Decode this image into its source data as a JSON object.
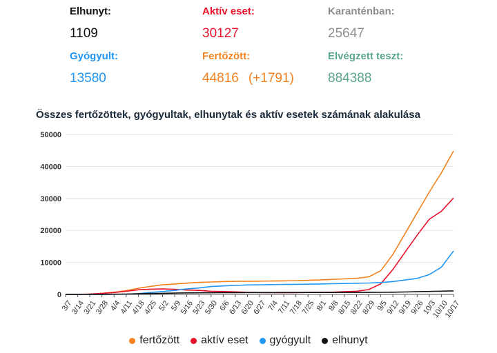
{
  "stats": {
    "elhunyt": {
      "label": "Elhunyt:",
      "value": "1109",
      "label_color": "#111111",
      "value_color": "#111111"
    },
    "aktiv": {
      "label": "Aktív eset:",
      "value": "30127",
      "label_color": "#e8132a",
      "value_color": "#e8132a"
    },
    "karantenban": {
      "label": "Karanténban:",
      "value": "25647",
      "label_color": "#8d8d8d",
      "value_color": "#8d8d8d"
    },
    "gyogyult": {
      "label": "Gyógyult:",
      "value": "13580",
      "label_color": "#2196f3",
      "value_color": "#2196f3"
    },
    "fertozott": {
      "label": "Fertőzött:",
      "value": "44816",
      "delta": "(+1791)",
      "label_color": "#f28220",
      "value_color": "#f28220"
    },
    "teszt": {
      "label": "Elvégzett teszt:",
      "value": "884388",
      "label_color": "#5aa889",
      "value_color": "#5aa889"
    }
  },
  "chart_data": {
    "type": "line",
    "title": "Összes fertőzöttek, gyógyultak, elhunytak és aktív esetek számának alakulása",
    "xlabel": "",
    "ylabel": "",
    "ylim": [
      0,
      50000
    ],
    "yticks": [
      0,
      10000,
      20000,
      30000,
      40000,
      50000
    ],
    "grid": true,
    "legend_position": "bottom",
    "x_ticks": [
      "3/7",
      "3/14",
      "3/21",
      "3/28",
      "4/4",
      "4/11",
      "4/18",
      "4/25",
      "5/2",
      "5/9",
      "5/16",
      "5/23",
      "5/30",
      "6/6",
      "6/13",
      "6/20",
      "6/27",
      "7/4",
      "7/11",
      "7/18",
      "7/25",
      "8/1",
      "8/8",
      "8/15",
      "8/22",
      "8/29",
      "9/5",
      "9/12",
      "9/19",
      "9/26",
      "10/3",
      "10/10",
      "10/17"
    ],
    "x": [
      "3/7",
      "3/14",
      "3/21",
      "3/28",
      "4/4",
      "4/11",
      "4/18",
      "4/25",
      "5/2",
      "5/9",
      "5/16",
      "5/23",
      "5/30",
      "6/6",
      "6/13",
      "6/20",
      "6/27",
      "7/4",
      "7/11",
      "7/18",
      "7/25",
      "8/1",
      "8/8",
      "8/15",
      "8/22",
      "8/29",
      "9/5",
      "9/12",
      "9/19",
      "9/26",
      "10/3",
      "10/10",
      "10/17"
    ],
    "series": [
      {
        "name": "fertőzött",
        "color": "#f28220",
        "values": [
          7,
          32,
          103,
          343,
          678,
          1190,
          1916,
          2500,
          2998,
          3263,
          3509,
          3756,
          3876,
          4014,
          4077,
          4114,
          4145,
          4183,
          4234,
          4300,
          4400,
          4500,
          4700,
          4850,
          5000,
          5500,
          7400,
          12500,
          19000,
          25500,
          32000,
          38000,
          44816
        ]
      },
      {
        "name": "aktív eset",
        "color": "#e8132a",
        "values": [
          7,
          31,
          95,
          310,
          590,
          1000,
          1440,
          1630,
          1700,
          1600,
          1350,
          1250,
          1000,
          900,
          800,
          650,
          580,
          540,
          520,
          560,
          600,
          620,
          700,
          850,
          1000,
          1500,
          3300,
          7800,
          13200,
          18500,
          23500,
          26000,
          30127
        ]
      },
      {
        "name": "gyógyult",
        "color": "#2196f3",
        "values": [
          0,
          1,
          4,
          13,
          34,
          60,
          250,
          600,
          900,
          1250,
          1700,
          2000,
          2450,
          2650,
          2800,
          2950,
          3000,
          3070,
          3120,
          3140,
          3200,
          3250,
          3350,
          3400,
          3500,
          3550,
          3700,
          4000,
          4500,
          5000,
          6200,
          8500,
          13580
        ]
      },
      {
        "name": "elhunyt",
        "color": "#111111",
        "values": [
          0,
          0,
          4,
          20,
          58,
          100,
          199,
          280,
          351,
          405,
          470,
          505,
          526,
          550,
          567,
          575,
          583,
          591,
          595,
          597,
          600,
          605,
          610,
          615,
          620,
          625,
          650,
          700,
          750,
          830,
          920,
          1010,
          1109
        ]
      }
    ]
  }
}
